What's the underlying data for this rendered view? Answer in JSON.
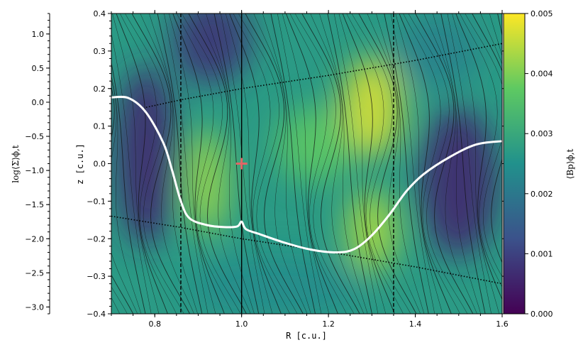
{
  "chart_data": {
    "type": "heatmap",
    "title": "",
    "xlabel": "R [c.u.]",
    "ylabel": "z [c.u.]",
    "left_axis_label": "log⟨Σ⟩ϕ,t",
    "colorbar_label": "⟨Bp⟩ϕ,t",
    "xlim": [
      0.7,
      1.6
    ],
    "ylim": [
      -0.4,
      0.4
    ],
    "left_axis_lim": [
      -3.1,
      1.3
    ],
    "colorbar_lim": [
      0.0,
      0.005
    ],
    "x_ticks": [
      {
        "value": 0.8,
        "label": "0.8"
      },
      {
        "value": 1.0,
        "label": "1.0"
      },
      {
        "value": 1.2,
        "label": "1.2"
      },
      {
        "value": 1.4,
        "label": "1.4"
      },
      {
        "value": 1.6,
        "label": "1.6"
      }
    ],
    "y_ticks": [
      {
        "value": -0.4,
        "label": "−0.4"
      },
      {
        "value": -0.3,
        "label": "−0.3"
      },
      {
        "value": -0.2,
        "label": "−0.2"
      },
      {
        "value": -0.1,
        "label": "−0.1"
      },
      {
        "value": 0.0,
        "label": "0.0"
      },
      {
        "value": 0.1,
        "label": "0.1"
      },
      {
        "value": 0.2,
        "label": "0.2"
      },
      {
        "value": 0.3,
        "label": "0.3"
      },
      {
        "value": 0.4,
        "label": "0.4"
      }
    ],
    "left_axis_ticks": [
      {
        "value": 1.0,
        "label": "1.0"
      },
      {
        "value": 0.5,
        "label": "0.5"
      },
      {
        "value": 0.0,
        "label": "0.0"
      },
      {
        "value": -0.5,
        "label": "−0.5"
      },
      {
        "value": -1.0,
        "label": "−1.0"
      },
      {
        "value": -1.5,
        "label": "−1.5"
      },
      {
        "value": -2.0,
        "label": "−2.0"
      },
      {
        "value": -2.5,
        "label": "−2.5"
      },
      {
        "value": -3.0,
        "label": "−3.0"
      }
    ],
    "colorbar_ticks": [
      {
        "value": 0.0,
        "label": "0.000"
      },
      {
        "value": 0.001,
        "label": "0.001"
      },
      {
        "value": 0.002,
        "label": "0.002"
      },
      {
        "value": 0.003,
        "label": "0.003"
      },
      {
        "value": 0.004,
        "label": "0.004"
      },
      {
        "value": 0.005,
        "label": "0.005"
      }
    ],
    "colormap": [
      "#440154",
      "#3b528b",
      "#21918c",
      "#5ec962",
      "#fde725"
    ],
    "heatmap_blobs": [
      {
        "r": 0.78,
        "z": 0.02,
        "w": 0.07,
        "h": 0.24,
        "value": 0.0006
      },
      {
        "r": 0.93,
        "z": 0.33,
        "w": 0.09,
        "h": 0.12,
        "value": 0.0008
      },
      {
        "r": 0.92,
        "z": -0.05,
        "w": 0.05,
        "h": 0.14,
        "value": 0.0042
      },
      {
        "r": 1.3,
        "z": 0.15,
        "w": 0.07,
        "h": 0.13,
        "value": 0.0047
      },
      {
        "r": 1.3,
        "z": -0.18,
        "w": 0.06,
        "h": 0.11,
        "value": 0.0043
      },
      {
        "r": 1.17,
        "z": 0.05,
        "w": 0.09,
        "h": 0.1,
        "value": 0.0037
      },
      {
        "r": 1.5,
        "z": -0.05,
        "w": 0.09,
        "h": 0.2,
        "value": 0.0006
      },
      {
        "r": 1.08,
        "z": -0.33,
        "w": 0.2,
        "h": 0.08,
        "value": 0.0024
      },
      {
        "r": 1.45,
        "z": 0.3,
        "w": 0.1,
        "h": 0.1,
        "value": 0.0022
      }
    ],
    "heatmap_background_value": 0.0027,
    "vertical_lines": [
      {
        "r": 0.86,
        "style": "dashed"
      },
      {
        "r": 1.0,
        "style": "solid"
      },
      {
        "r": 1.35,
        "style": "dashed"
      }
    ],
    "dotted_boundaries": [
      {
        "name": "upper",
        "points": [
          [
            0.78,
            0.15
          ],
          [
            0.86,
            0.17
          ],
          [
            1.0,
            0.2
          ],
          [
            1.2,
            0.235
          ],
          [
            1.4,
            0.275
          ],
          [
            1.6,
            0.32
          ]
        ]
      },
      {
        "name": "lower",
        "points": [
          [
            0.7,
            -0.14
          ],
          [
            0.86,
            -0.17
          ],
          [
            1.0,
            -0.2
          ],
          [
            1.2,
            -0.235
          ],
          [
            1.4,
            -0.275
          ],
          [
            1.6,
            -0.32
          ]
        ]
      }
    ],
    "surface_density_profile": {
      "axis": "left",
      "points": [
        [
          0.7,
          0.07
        ],
        [
          0.74,
          0.06
        ],
        [
          0.78,
          -0.15
        ],
        [
          0.82,
          -0.6
        ],
        [
          0.84,
          -1.0
        ],
        [
          0.86,
          -1.45
        ],
        [
          0.88,
          -1.7
        ],
        [
          0.92,
          -1.8
        ],
        [
          0.96,
          -1.83
        ],
        [
          0.99,
          -1.82
        ],
        [
          1.0,
          -1.75
        ],
        [
          1.01,
          -1.86
        ],
        [
          1.04,
          -1.93
        ],
        [
          1.1,
          -2.06
        ],
        [
          1.16,
          -2.16
        ],
        [
          1.22,
          -2.2
        ],
        [
          1.26,
          -2.15
        ],
        [
          1.3,
          -1.95
        ],
        [
          1.34,
          -1.65
        ],
        [
          1.38,
          -1.3
        ],
        [
          1.42,
          -1.05
        ],
        [
          1.48,
          -0.8
        ],
        [
          1.54,
          -0.62
        ],
        [
          1.6,
          -0.57
        ]
      ]
    },
    "marker": {
      "r": 1.0,
      "z": 0.0,
      "shape": "plus",
      "color": "#e06666"
    },
    "streamline_color": "#111111",
    "profile_color": "#ffffff"
  }
}
